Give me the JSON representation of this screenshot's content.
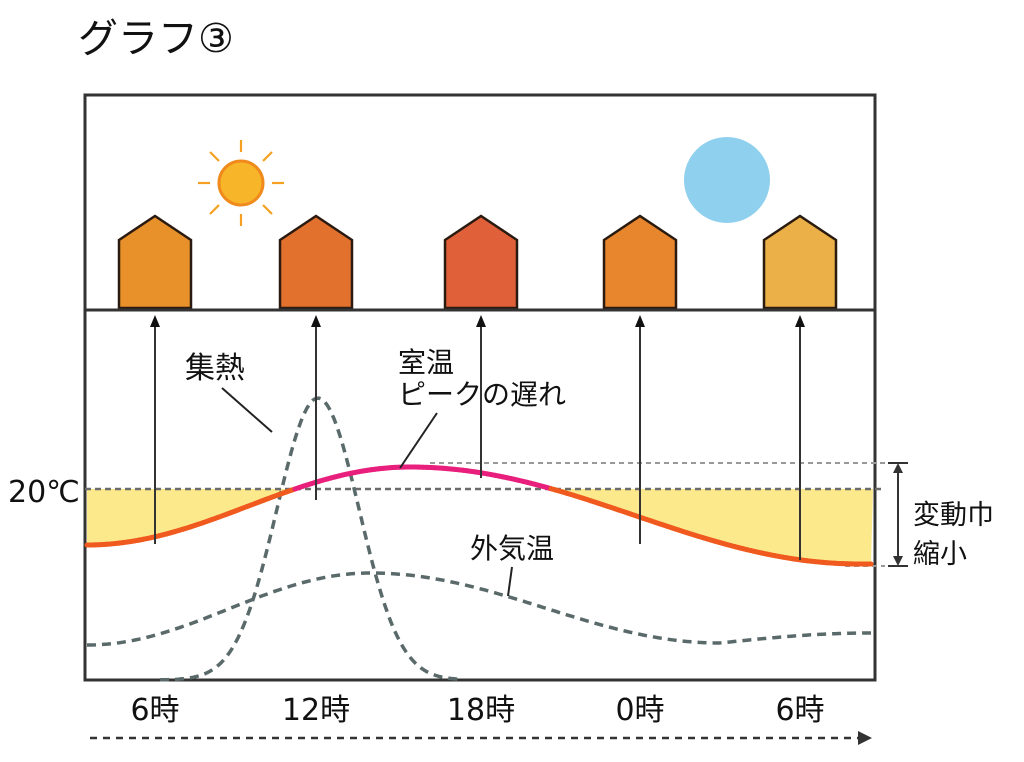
{
  "title": "グラフ③",
  "chart_data": {
    "type": "line",
    "x_ticks": [
      "6時",
      "12時",
      "18時",
      "0時",
      "6時"
    ],
    "reference_label": "20℃",
    "annotations": {
      "heat_gain": "集熱",
      "room_temp_line1": "室温",
      "room_temp_line2": "ピークの遅れ",
      "outside_temp": "外気温",
      "range_line1": "変動巾",
      "range_line2": "縮小"
    },
    "series": [
      {
        "name": "室温"
      },
      {
        "name": "外気温"
      },
      {
        "name": "集熱"
      }
    ],
    "colors": {
      "room_temp": "#e81f7c",
      "room_temp_low": "#f05a1e",
      "outside_temp": "#5a6a6a",
      "heat_gain": "#5a6a6a",
      "band": "#fbe98c",
      "sun": "#f7a21b",
      "moon": "#8fd0ee"
    },
    "house_colors": [
      "#e8902a",
      "#e2712e",
      "#e0603a",
      "#e8862e",
      "#ebb048"
    ]
  }
}
